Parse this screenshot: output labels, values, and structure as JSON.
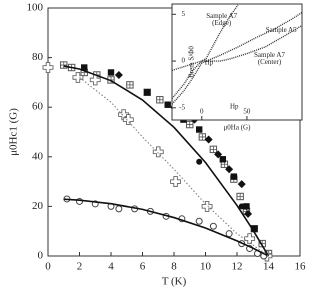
{
  "chart_data": [
    {
      "type": "scatter",
      "x_label": "T (K)",
      "y_label": "μ0Hc1 (G)",
      "xlim": [
        0,
        16
      ],
      "xticks": [
        0,
        2,
        4,
        6,
        8,
        10,
        12,
        14,
        16
      ],
      "ylim": [
        0,
        100
      ],
      "yticks": [
        0,
        20,
        40,
        60,
        80,
        100
      ],
      "series": [
        {
          "marker": "square-plus",
          "color": "#555555",
          "x": [
            1.0,
            1.5,
            2.3,
            3.1,
            4.0,
            5.2,
            6.3,
            7.1,
            8.2,
            9.0,
            9.8,
            10.5,
            11.2,
            11.8,
            12.2,
            12.6,
            13.1,
            13.6,
            14.0
          ],
          "values": [
            77,
            76,
            74,
            73,
            71,
            69,
            66,
            63,
            57,
            53,
            48,
            43,
            37,
            31,
            24,
            18,
            11,
            5,
            1
          ]
        },
        {
          "marker": "filled-square",
          "color": "#111111",
          "x": [
            2.3,
            4.0,
            6.3,
            7.6,
            8.6,
            9.6,
            11.1,
            11.8,
            12.6,
            13.1
          ],
          "values": [
            76,
            74,
            66,
            61,
            55,
            51,
            39,
            32,
            20,
            11
          ]
        },
        {
          "marker": "filled-diamond",
          "color": "#111111",
          "x": [
            4.5,
            8.0,
            9.3,
            10.2,
            10.8,
            11.5,
            12.3,
            12.7
          ],
          "values": [
            73,
            60,
            55,
            47,
            41,
            35,
            29,
            17
          ]
        },
        {
          "marker": "filled-circle",
          "color": "#111111",
          "x": [
            9.6,
            12.3
          ],
          "values": [
            38,
            20
          ]
        },
        {
          "marker": "open-plus",
          "color": "#666666",
          "x": [
            0,
            1.9,
            3.0,
            4.8,
            5.1,
            7.0,
            8.1,
            10.1,
            12.8,
            13.9
          ],
          "values": [
            76,
            72,
            71,
            57,
            55,
            42,
            30,
            20,
            7,
            0
          ]
        },
        {
          "marker": "open-circle",
          "color": "#444444",
          "x": [
            1.2,
            2.0,
            3.0,
            4.0,
            4.5,
            5.5,
            6.5,
            7.5,
            8.5,
            9.6,
            10.5,
            11.5,
            12.3,
            12.8,
            13.3,
            13.7
          ],
          "values": [
            23,
            22,
            21,
            20,
            19,
            19,
            18,
            16,
            15,
            14,
            12,
            9,
            5,
            3,
            1,
            0
          ]
        },
        {
          "line": "solid",
          "color": "#111111",
          "x": [
            1,
            2,
            4,
            6,
            8,
            10,
            12,
            13,
            14
          ],
          "values": [
            76.6,
            75.4,
            70.7,
            62.9,
            51.9,
            37.7,
            20.4,
            10.6,
            0
          ]
        },
        {
          "line": "solid",
          "color": "#111111",
          "x": [
            1,
            2,
            4,
            6,
            8,
            10,
            12,
            13,
            14
          ],
          "values": [
            22.9,
            22.5,
            21.1,
            18.8,
            15.5,
            11.3,
            6.1,
            3.2,
            0
          ]
        },
        {
          "line": "dotted",
          "color": "#777777",
          "x": [
            2,
            4,
            6,
            8,
            10,
            12,
            14
          ],
          "values": [
            72,
            62,
            48,
            35,
            21,
            9,
            0
          ]
        }
      ]
    },
    {
      "type": "scatter",
      "x_label": "μ0Ha (G)",
      "y_label": "Brem S/Φ0",
      "xlim": [
        -33,
        111
      ],
      "xticks": [
        0,
        50
      ],
      "ylim": [
        -6.3,
        6.1
      ],
      "yticks": [
        -5,
        0,
        5
      ],
      "annotations": [
        {
          "text": [
            "Sample A7",
            "(Edge)"
          ],
          "x": 22,
          "y": 4.8
        },
        {
          "text": [
            "Sample A5"
          ],
          "x": 88,
          "y": 3.3
        },
        {
          "text": [
            "Sample A7",
            "(Center)"
          ],
          "x": 75,
          "y": 0.6
        },
        {
          "text": [
            "Hp"
          ],
          "x": 8,
          "y": -0.2
        },
        {
          "text": [
            "Hp"
          ],
          "x": 36,
          "y": -4.9
        }
      ],
      "series": [
        {
          "marker": "dot",
          "color": "#333333",
          "x": [
            -33,
            -20,
            -10,
            0,
            5,
            10,
            20,
            30,
            40
          ],
          "values": [
            -1.0,
            -0.6,
            -0.3,
            0,
            0.3,
            1.2,
            3.0,
            4.6,
            6.0
          ]
        },
        {
          "marker": "dot",
          "color": "#333333",
          "x": [
            -33,
            -20,
            -10,
            0,
            20,
            40,
            60,
            80,
            100,
            111
          ],
          "values": [
            -4.6,
            -3.2,
            -1.8,
            -0.2,
            0.6,
            1.5,
            2.5,
            3.4,
            4.5,
            5.2
          ]
        },
        {
          "marker": "dot",
          "color": "#333333",
          "x": [
            -33,
            -20,
            -10,
            0,
            10,
            20,
            30,
            50,
            70,
            90,
            111
          ],
          "values": [
            -4.0,
            -2.5,
            -1.0,
            0,
            0,
            0,
            0.2,
            0.8,
            1.5,
            2.6,
            3.8
          ]
        }
      ]
    }
  ]
}
